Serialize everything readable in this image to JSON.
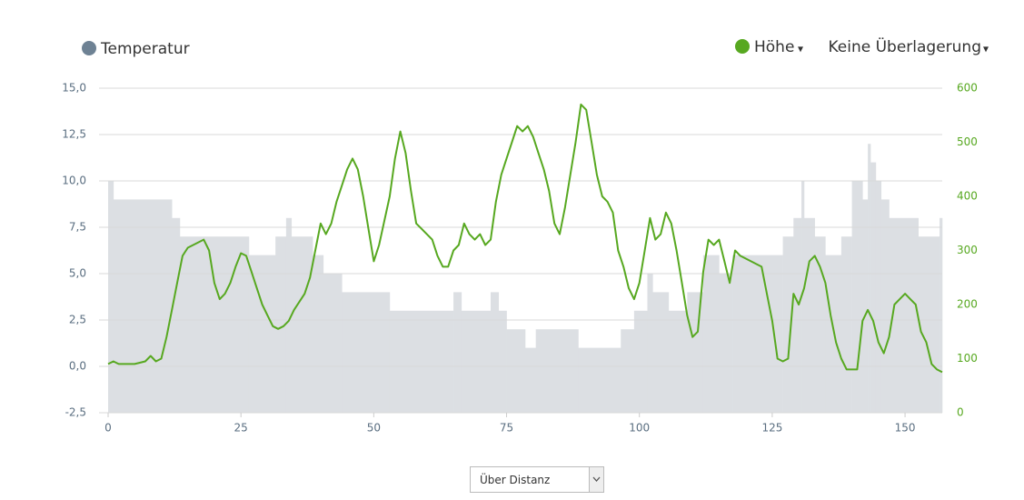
{
  "chart_data": {
    "type": "line",
    "xlim": [
      0,
      157
    ],
    "xticks": [
      0,
      25,
      50,
      75,
      100,
      125,
      150
    ],
    "ylim": [
      -2.5,
      15
    ],
    "yticks": [
      {
        "value": -2.5,
        "label": "-2,5"
      },
      {
        "value": 0,
        "label": "0,0"
      },
      {
        "value": 2.5,
        "label": "2,5"
      },
      {
        "value": 5,
        "label": "5,0"
      },
      {
        "value": 7.5,
        "label": "7,5"
      },
      {
        "value": 10,
        "label": "10,0"
      },
      {
        "value": 12.5,
        "label": "12,5"
      },
      {
        "value": 15,
        "label": "15,0"
      }
    ],
    "y2lim": [
      0,
      600
    ],
    "y2ticks": [
      0,
      100,
      200,
      300,
      400,
      500,
      600
    ],
    "grid": true,
    "series": [
      {
        "name": "Temperatur",
        "type": "step-area",
        "color": "#dcdfe3",
        "legend_color": "#6e8294",
        "x": [
          0,
          1,
          12,
          13.5,
          20.5,
          26.5,
          31.5,
          33.5,
          34.5,
          38.5,
          40.5,
          44,
          53,
          65,
          66.5,
          72,
          73.5,
          75,
          78.5,
          80.5,
          88.5,
          96.5,
          99,
          101.5,
          102.5,
          105.5,
          109,
          112,
          115,
          117.5,
          127,
          129,
          130.5,
          131,
          133,
          135,
          138,
          140,
          142,
          143,
          143.5,
          144.5,
          145.5,
          147,
          152.5,
          156.5
        ],
        "values": [
          10,
          9,
          8,
          7,
          7,
          6,
          7,
          8,
          7,
          6,
          5,
          4,
          3,
          4,
          3,
          4,
          3,
          2,
          1,
          2,
          1,
          2,
          3,
          5,
          4,
          3,
          4,
          6,
          5,
          6,
          7,
          8,
          10,
          8,
          7,
          6,
          7,
          10,
          9,
          12,
          11,
          10,
          9,
          8,
          7,
          8
        ]
      },
      {
        "name": "Höhe",
        "type": "line",
        "axis": "y2",
        "color": "#57a820",
        "x": [
          0,
          1,
          2,
          5,
          7,
          8,
          9,
          10,
          11,
          12,
          13,
          14,
          15,
          16,
          18,
          19,
          20,
          21,
          22,
          23,
          24,
          25,
          26,
          27,
          28,
          29,
          30,
          31,
          32,
          33,
          34,
          35,
          37,
          38,
          39,
          40,
          41,
          42,
          43,
          44,
          45,
          46,
          47,
          48,
          49,
          50,
          51,
          53,
          54,
          55,
          56,
          57,
          58,
          59,
          61,
          62,
          63,
          64,
          65,
          66,
          67,
          68,
          69,
          70,
          71,
          72,
          73,
          74,
          75,
          76,
          77,
          78,
          79,
          80,
          81,
          82,
          83,
          84,
          85,
          86,
          87,
          88,
          89,
          90,
          91,
          92,
          93,
          94,
          95,
          96,
          97,
          98,
          99,
          100,
          101,
          102,
          103,
          104,
          105,
          106,
          107,
          108,
          109,
          110,
          111,
          112,
          113,
          114,
          115,
          116,
          117,
          118,
          119,
          121,
          123,
          124,
          125,
          126,
          127,
          128,
          129,
          130,
          131,
          132,
          133,
          134,
          135,
          136,
          137,
          138,
          139,
          141,
          142,
          143,
          144,
          145,
          146,
          147,
          148,
          149,
          150,
          151,
          152,
          153,
          154,
          155,
          156,
          157
        ],
        "values": [
          90,
          95,
          90,
          90,
          95,
          105,
          95,
          100,
          140,
          190,
          240,
          290,
          305,
          310,
          320,
          300,
          240,
          210,
          220,
          240,
          270,
          295,
          290,
          260,
          230,
          200,
          180,
          160,
          155,
          160,
          170,
          190,
          220,
          250,
          300,
          350,
          330,
          350,
          390,
          420,
          450,
          470,
          450,
          400,
          340,
          280,
          310,
          400,
          470,
          520,
          480,
          410,
          350,
          340,
          320,
          290,
          270,
          270,
          300,
          310,
          350,
          330,
          320,
          330,
          310,
          320,
          390,
          440,
          470,
          500,
          530,
          520,
          530,
          510,
          480,
          450,
          410,
          350,
          330,
          380,
          440,
          500,
          570,
          560,
          500,
          440,
          400,
          390,
          370,
          300,
          270,
          230,
          210,
          240,
          300,
          360,
          320,
          330,
          370,
          350,
          300,
          240,
          180,
          140,
          150,
          260,
          320,
          310,
          320,
          280,
          240,
          300,
          290,
          280,
          270,
          220,
          170,
          100,
          95,
          100,
          220,
          200,
          230,
          280,
          290,
          270,
          240,
          180,
          130,
          100,
          80,
          80,
          170,
          190,
          170,
          130,
          110,
          140,
          200,
          210,
          220,
          210,
          200,
          150,
          130,
          90,
          80,
          75
        ]
      }
    ],
    "legend_caret": "▾",
    "overlay_menu": "Keine Überlagerung",
    "x_mode_select": "Über Distanz"
  }
}
